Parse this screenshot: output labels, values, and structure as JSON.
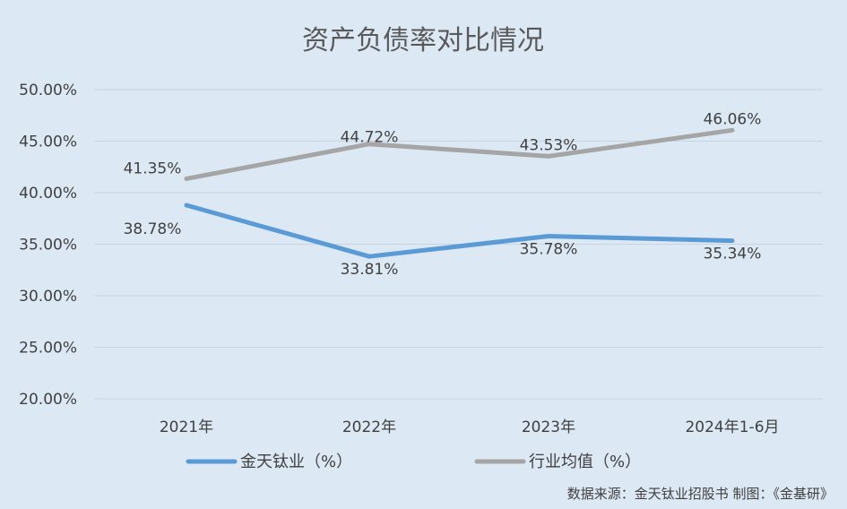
{
  "chart_data": {
    "type": "line",
    "title": "资产负债率对比情况",
    "categories": [
      "2021年",
      "2022年",
      "2023年",
      "2024年1-6月"
    ],
    "series": [
      {
        "name": "金天钛业（%）",
        "values": [
          38.78,
          33.81,
          35.78,
          35.34
        ],
        "labels": [
          "38.78%",
          "33.81%",
          "35.78%",
          "35.34%"
        ],
        "color": "#5b9bd5"
      },
      {
        "name": "行业均值（%）",
        "values": [
          41.35,
          44.72,
          43.53,
          46.06
        ],
        "labels": [
          "41.35%",
          "44.72%",
          "43.53%",
          "46.06%"
        ],
        "color": "#a5a5a5"
      }
    ],
    "ylim": [
      20,
      50
    ],
    "y_ticks": [
      "20.00%",
      "25.00%",
      "30.00%",
      "35.00%",
      "40.00%",
      "45.00%",
      "50.00%"
    ],
    "grid": true,
    "legend_position": "bottom",
    "source_note": "数据来源：金天钛业招股书   制图：《金基研》"
  },
  "colors": {
    "background": "#dde8f5",
    "gridline": "#c8d3e0"
  }
}
